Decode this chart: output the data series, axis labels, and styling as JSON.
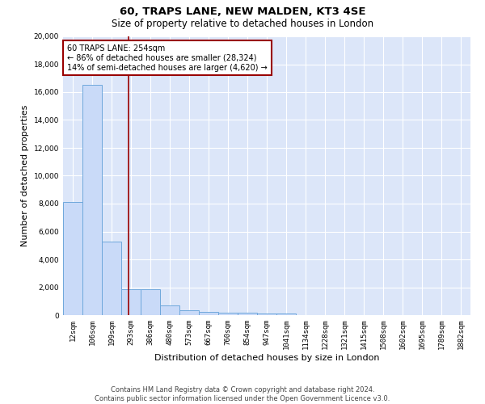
{
  "title": "60, TRAPS LANE, NEW MALDEN, KT3 4SE",
  "subtitle": "Size of property relative to detached houses in London",
  "xlabel": "Distribution of detached houses by size in London",
  "ylabel": "Number of detached properties",
  "categories": [
    "12sqm",
    "106sqm",
    "199sqm",
    "293sqm",
    "386sqm",
    "480sqm",
    "573sqm",
    "667sqm",
    "760sqm",
    "854sqm",
    "947sqm",
    "1041sqm",
    "1134sqm",
    "1228sqm",
    "1321sqm",
    "1415sqm",
    "1508sqm",
    "1602sqm",
    "1695sqm",
    "1789sqm",
    "1882sqm"
  ],
  "values": [
    8100,
    16500,
    5300,
    1850,
    1850,
    700,
    320,
    230,
    200,
    150,
    130,
    120,
    0,
    0,
    0,
    0,
    0,
    0,
    0,
    0,
    0
  ],
  "bar_color": "#c9daf8",
  "bar_edge_color": "#6fa8dc",
  "vline_x": 2.86,
  "vline_color": "#990000",
  "annotation_text": "60 TRAPS LANE: 254sqm\n← 86% of detached houses are smaller (28,324)\n14% of semi-detached houses are larger (4,620) →",
  "annotation_box_color": "white",
  "annotation_box_edge": "#990000",
  "ylim": [
    0,
    20000
  ],
  "yticks": [
    0,
    2000,
    4000,
    6000,
    8000,
    10000,
    12000,
    14000,
    16000,
    18000,
    20000
  ],
  "footer": "Contains HM Land Registry data © Crown copyright and database right 2024.\nContains public sector information licensed under the Open Government Licence v3.0.",
  "bg_color": "#dce6f9",
  "grid_color": "#ffffff",
  "title_fontsize": 9.5,
  "subtitle_fontsize": 8.5,
  "tick_fontsize": 6.5,
  "ylabel_fontsize": 8,
  "xlabel_fontsize": 8,
  "annotation_fontsize": 7,
  "footer_fontsize": 6
}
